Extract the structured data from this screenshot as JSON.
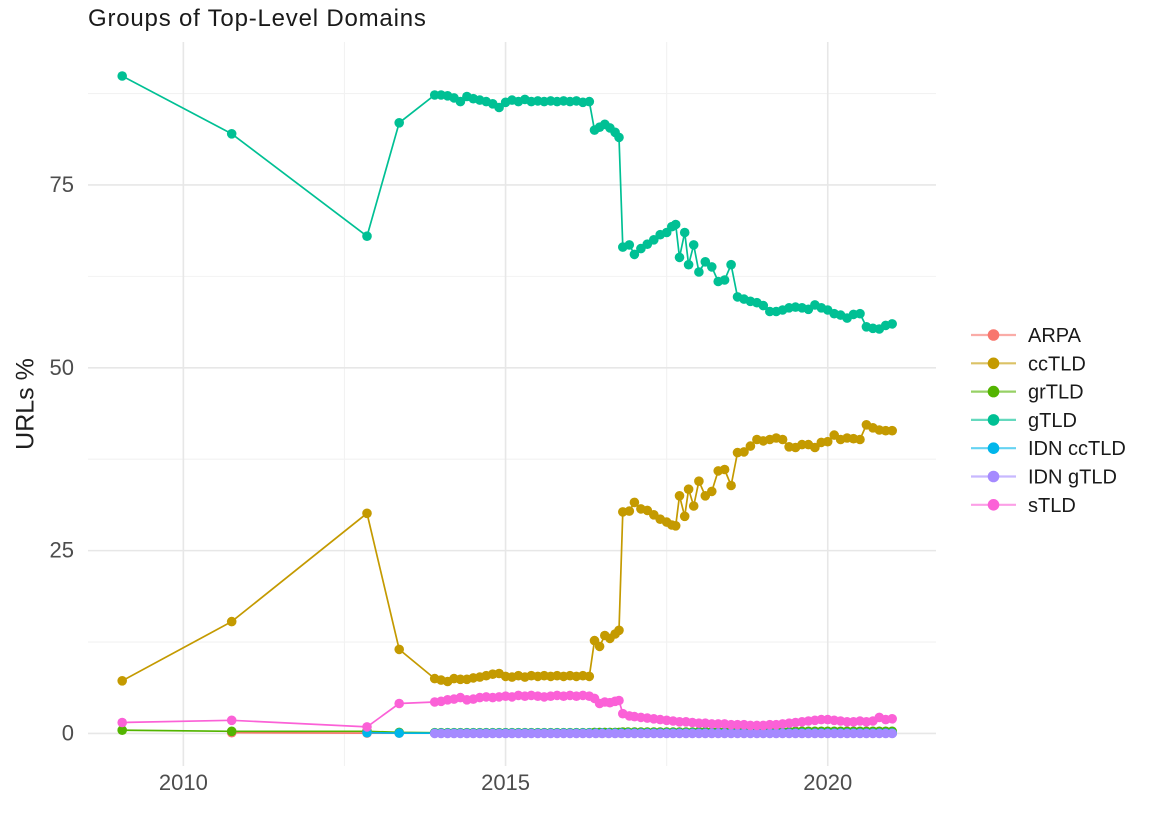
{
  "page": {
    "background": "#ffffff"
  },
  "chart_data": {
    "type": "line",
    "title": "Groups of Top-Level Domains",
    "xlabel": "",
    "ylabel": "URLs %",
    "grid": "major_and_minor",
    "panel_background": "#ffffff",
    "gridline_major_color": "#e7e7e7",
    "gridline_minor_color": "#f2f2f2",
    "tick_label_color": "#4d4d4d",
    "xlim": [
      2008.52,
      2021.68
    ],
    "ylim": [
      -4.45,
      94.55
    ],
    "x_axis": {
      "major_ticks": [
        {
          "value": 2010,
          "label": "2010"
        },
        {
          "value": 2015,
          "label": "2015"
        },
        {
          "value": 2020,
          "label": "2020"
        }
      ],
      "minor_ticks": [
        2012.5,
        2017.5
      ]
    },
    "y_axis": {
      "major_ticks": [
        {
          "value": 0,
          "label": "0"
        },
        {
          "value": 25,
          "label": "25"
        },
        {
          "value": 50,
          "label": "50"
        },
        {
          "value": 75,
          "label": "75"
        }
      ],
      "minor_ticks": [
        12.5,
        37.5,
        62.5,
        87.5
      ]
    },
    "legend": {
      "position": "right",
      "title": null
    },
    "series": [
      {
        "name": "ARPA",
        "color": "#F8766D",
        "points": [
          [
            2010.75,
            0.1
          ],
          [
            2012.85,
            0.05
          ],
          [
            2013.35,
            0.05
          ],
          [
            2013.9,
            0.05
          ],
          {
            "from": 2014.0,
            "to": 2021.0,
            "step": 0.1,
            "value": 0.05
          }
        ]
      },
      {
        "name": "ccTLD",
        "color": "#C49A00",
        "points": [
          [
            2009.05,
            7.2
          ],
          [
            2010.75,
            15.3
          ],
          [
            2012.85,
            30.1
          ],
          [
            2013.35,
            11.5
          ],
          [
            2013.9,
            7.5
          ],
          [
            2014.0,
            7.3
          ],
          [
            2014.1,
            7.1
          ],
          [
            2014.2,
            7.5
          ],
          [
            2014.3,
            7.4
          ],
          [
            2014.4,
            7.4
          ],
          [
            2014.5,
            7.6
          ],
          [
            2014.6,
            7.7
          ],
          [
            2014.7,
            7.9
          ],
          [
            2014.8,
            8.1
          ],
          [
            2014.9,
            8.2
          ],
          [
            2015.0,
            7.8
          ],
          [
            2015.1,
            7.7
          ],
          [
            2015.2,
            7.9
          ],
          [
            2015.3,
            7.7
          ],
          [
            2015.4,
            7.9
          ],
          [
            2015.5,
            7.8
          ],
          [
            2015.6,
            7.9
          ],
          [
            2015.7,
            7.8
          ],
          [
            2015.8,
            7.9
          ],
          [
            2015.9,
            7.8
          ],
          [
            2016.0,
            7.9
          ],
          [
            2016.1,
            7.8
          ],
          [
            2016.2,
            7.9
          ],
          [
            2016.3,
            7.8
          ],
          [
            2016.38,
            12.7
          ],
          [
            2016.46,
            11.9
          ],
          [
            2016.54,
            13.4
          ],
          [
            2016.62,
            13.0
          ],
          [
            2016.7,
            13.6
          ],
          [
            2016.76,
            14.1
          ],
          [
            2016.82,
            30.3
          ],
          [
            2016.92,
            30.4
          ],
          [
            2017.0,
            31.6
          ],
          [
            2017.1,
            30.7
          ],
          [
            2017.2,
            30.5
          ],
          [
            2017.3,
            29.9
          ],
          [
            2017.4,
            29.3
          ],
          [
            2017.5,
            28.9
          ],
          [
            2017.58,
            28.5
          ],
          [
            2017.64,
            28.4
          ],
          [
            2017.7,
            32.5
          ],
          [
            2017.78,
            29.7
          ],
          [
            2017.84,
            33.4
          ],
          [
            2017.92,
            31.1
          ],
          [
            2018.0,
            34.5
          ],
          [
            2018.1,
            32.5
          ],
          [
            2018.2,
            33.1
          ],
          [
            2018.3,
            35.9
          ],
          [
            2018.4,
            36.1
          ],
          [
            2018.5,
            33.9
          ],
          [
            2018.6,
            38.4
          ],
          [
            2018.7,
            38.5
          ],
          [
            2018.8,
            39.3
          ],
          [
            2018.9,
            40.2
          ],
          [
            2019.0,
            40.0
          ],
          [
            2019.1,
            40.2
          ],
          [
            2019.2,
            40.4
          ],
          [
            2019.3,
            40.2
          ],
          [
            2019.4,
            39.2
          ],
          [
            2019.5,
            39.1
          ],
          [
            2019.6,
            39.5
          ],
          [
            2019.7,
            39.5
          ],
          [
            2019.8,
            39.1
          ],
          [
            2019.9,
            39.8
          ],
          [
            2020.0,
            39.9
          ],
          [
            2020.1,
            40.8
          ],
          [
            2020.2,
            40.2
          ],
          [
            2020.3,
            40.4
          ],
          [
            2020.4,
            40.3
          ],
          [
            2020.5,
            40.2
          ],
          [
            2020.6,
            42.2
          ],
          [
            2020.7,
            41.8
          ],
          [
            2020.8,
            41.5
          ],
          [
            2020.9,
            41.4
          ],
          [
            2021.0,
            41.4
          ]
        ]
      },
      {
        "name": "grTLD",
        "color": "#53B400",
        "points": [
          [
            2009.05,
            0.45
          ],
          [
            2010.75,
            0.3
          ],
          [
            2012.85,
            0.3
          ],
          [
            2013.35,
            0.15
          ],
          [
            2013.9,
            0.1
          ],
          {
            "from": 2014.0,
            "to": 2016.3,
            "step": 0.1,
            "value": 0.1
          },
          [
            2016.38,
            0.15
          ],
          [
            2016.46,
            0.15
          ],
          [
            2016.54,
            0.15
          ],
          [
            2016.62,
            0.15
          ],
          [
            2016.7,
            0.15
          ],
          [
            2016.76,
            0.15
          ],
          [
            2016.82,
            0.2
          ],
          {
            "from": 2016.9,
            "to": 2017.9,
            "step": 0.1,
            "value": 0.2
          },
          {
            "from": 2018.0,
            "to": 2019.4,
            "step": 0.1,
            "value": 0.25
          },
          {
            "from": 2019.5,
            "to": 2021.0,
            "step": 0.1,
            "value": 0.3
          }
        ]
      },
      {
        "name": "gTLD",
        "color": "#00C094",
        "points": [
          [
            2009.05,
            89.9
          ],
          [
            2010.75,
            82.0
          ],
          [
            2012.85,
            68.0
          ],
          [
            2013.35,
            83.5
          ],
          [
            2013.9,
            87.3
          ],
          [
            2014.0,
            87.3
          ],
          [
            2014.1,
            87.2
          ],
          [
            2014.2,
            86.9
          ],
          [
            2014.3,
            86.4
          ],
          [
            2014.4,
            87.1
          ],
          [
            2014.5,
            86.8
          ],
          [
            2014.6,
            86.6
          ],
          [
            2014.7,
            86.4
          ],
          [
            2014.8,
            86.1
          ],
          [
            2014.9,
            85.6
          ],
          [
            2015.0,
            86.3
          ],
          [
            2015.1,
            86.6
          ],
          [
            2015.2,
            86.4
          ],
          [
            2015.3,
            86.7
          ],
          [
            2015.4,
            86.4
          ],
          [
            2015.5,
            86.5
          ],
          [
            2015.6,
            86.4
          ],
          [
            2015.7,
            86.5
          ],
          [
            2015.8,
            86.4
          ],
          [
            2015.9,
            86.5
          ],
          [
            2016.0,
            86.4
          ],
          [
            2016.1,
            86.5
          ],
          [
            2016.2,
            86.3
          ],
          [
            2016.3,
            86.4
          ],
          [
            2016.38,
            82.5
          ],
          [
            2016.46,
            82.9
          ],
          [
            2016.54,
            83.3
          ],
          [
            2016.62,
            82.8
          ],
          [
            2016.7,
            82.2
          ],
          [
            2016.76,
            81.5
          ],
          [
            2016.82,
            66.5
          ],
          [
            2016.92,
            66.8
          ],
          [
            2017.0,
            65.5
          ],
          [
            2017.1,
            66.3
          ],
          [
            2017.2,
            66.9
          ],
          [
            2017.3,
            67.5
          ],
          [
            2017.4,
            68.2
          ],
          [
            2017.5,
            68.5
          ],
          [
            2017.58,
            69.3
          ],
          [
            2017.64,
            69.6
          ],
          [
            2017.7,
            65.1
          ],
          [
            2017.78,
            68.5
          ],
          [
            2017.84,
            64.1
          ],
          [
            2017.92,
            66.8
          ],
          [
            2018.0,
            63.1
          ],
          [
            2018.1,
            64.5
          ],
          [
            2018.2,
            63.8
          ],
          [
            2018.3,
            61.8
          ],
          [
            2018.4,
            62.0
          ],
          [
            2018.5,
            64.1
          ],
          [
            2018.6,
            59.7
          ],
          [
            2018.7,
            59.4
          ],
          [
            2018.8,
            59.1
          ],
          [
            2018.9,
            58.9
          ],
          [
            2019.0,
            58.5
          ],
          [
            2019.1,
            57.7
          ],
          [
            2019.2,
            57.7
          ],
          [
            2019.3,
            57.9
          ],
          [
            2019.4,
            58.2
          ],
          [
            2019.5,
            58.3
          ],
          [
            2019.6,
            58.2
          ],
          [
            2019.7,
            58.0
          ],
          [
            2019.8,
            58.6
          ],
          [
            2019.9,
            58.2
          ],
          [
            2020.0,
            57.9
          ],
          [
            2020.1,
            57.4
          ],
          [
            2020.2,
            57.2
          ],
          [
            2020.3,
            56.8
          ],
          [
            2020.4,
            57.3
          ],
          [
            2020.5,
            57.4
          ],
          [
            2020.6,
            55.6
          ],
          [
            2020.7,
            55.4
          ],
          [
            2020.8,
            55.3
          ],
          [
            2020.9,
            55.8
          ],
          [
            2021.0,
            56.0
          ]
        ]
      },
      {
        "name": "IDN ccTLD",
        "color": "#00B6EB",
        "points": [
          [
            2012.85,
            0.1
          ],
          [
            2013.35,
            0.05
          ],
          [
            2013.9,
            0.05
          ],
          {
            "from": 2014.0,
            "to": 2021.0,
            "step": 0.1,
            "value": 0.05
          }
        ]
      },
      {
        "name": "IDN gTLD",
        "color": "#A58AFF",
        "points": [
          [
            2013.9,
            0.0
          ],
          {
            "from": 2014.0,
            "to": 2021.0,
            "step": 0.1,
            "value": 0.0
          }
        ]
      },
      {
        "name": "sTLD",
        "color": "#FB61D7",
        "points": [
          [
            2009.05,
            1.5
          ],
          [
            2010.75,
            1.8
          ],
          [
            2012.85,
            0.9
          ],
          [
            2013.35,
            4.1
          ],
          [
            2013.9,
            4.3
          ],
          [
            2014.0,
            4.4
          ],
          [
            2014.1,
            4.6
          ],
          [
            2014.2,
            4.7
          ],
          [
            2014.3,
            4.9
          ],
          [
            2014.4,
            4.6
          ],
          [
            2014.5,
            4.7
          ],
          [
            2014.6,
            4.9
          ],
          [
            2014.7,
            5.0
          ],
          [
            2014.8,
            4.9
          ],
          [
            2014.9,
            5.0
          ],
          [
            2015.0,
            5.1
          ],
          [
            2015.1,
            5.0
          ],
          [
            2015.2,
            5.2
          ],
          [
            2015.3,
            5.1
          ],
          [
            2015.4,
            5.2
          ],
          [
            2015.5,
            5.1
          ],
          [
            2015.6,
            5.0
          ],
          [
            2015.7,
            5.1
          ],
          [
            2015.8,
            5.2
          ],
          [
            2015.9,
            5.1
          ],
          [
            2016.0,
            5.2
          ],
          [
            2016.1,
            5.1
          ],
          [
            2016.2,
            5.2
          ],
          [
            2016.3,
            5.1
          ],
          [
            2016.38,
            4.8
          ],
          [
            2016.46,
            4.1
          ],
          [
            2016.54,
            4.3
          ],
          [
            2016.62,
            4.2
          ],
          [
            2016.7,
            4.4
          ],
          [
            2016.76,
            4.5
          ],
          [
            2016.82,
            2.7
          ],
          [
            2016.92,
            2.4
          ],
          [
            2017.0,
            2.3
          ],
          [
            2017.1,
            2.2
          ],
          [
            2017.2,
            2.1
          ],
          [
            2017.3,
            2.0
          ],
          [
            2017.4,
            1.9
          ],
          [
            2017.5,
            1.8
          ],
          [
            2017.6,
            1.7
          ],
          [
            2017.7,
            1.6
          ],
          [
            2017.8,
            1.6
          ],
          [
            2017.9,
            1.5
          ],
          [
            2018.0,
            1.4
          ],
          [
            2018.1,
            1.4
          ],
          [
            2018.2,
            1.3
          ],
          [
            2018.3,
            1.3
          ],
          [
            2018.4,
            1.3
          ],
          [
            2018.5,
            1.2
          ],
          [
            2018.6,
            1.2
          ],
          [
            2018.7,
            1.2
          ],
          [
            2018.8,
            1.1
          ],
          [
            2018.9,
            1.1
          ],
          [
            2019.0,
            1.1
          ],
          [
            2019.1,
            1.2
          ],
          [
            2019.2,
            1.2
          ],
          [
            2019.3,
            1.3
          ],
          [
            2019.4,
            1.4
          ],
          [
            2019.5,
            1.5
          ],
          [
            2019.6,
            1.6
          ],
          [
            2019.7,
            1.7
          ],
          [
            2019.8,
            1.8
          ],
          [
            2019.9,
            1.9
          ],
          [
            2020.0,
            1.9
          ],
          [
            2020.1,
            1.8
          ],
          [
            2020.2,
            1.7
          ],
          [
            2020.3,
            1.6
          ],
          [
            2020.4,
            1.6
          ],
          [
            2020.5,
            1.7
          ],
          [
            2020.6,
            1.6
          ],
          [
            2020.7,
            1.7
          ],
          [
            2020.8,
            2.2
          ],
          [
            2020.9,
            1.9
          ],
          [
            2021.0,
            2.0
          ]
        ]
      }
    ]
  }
}
